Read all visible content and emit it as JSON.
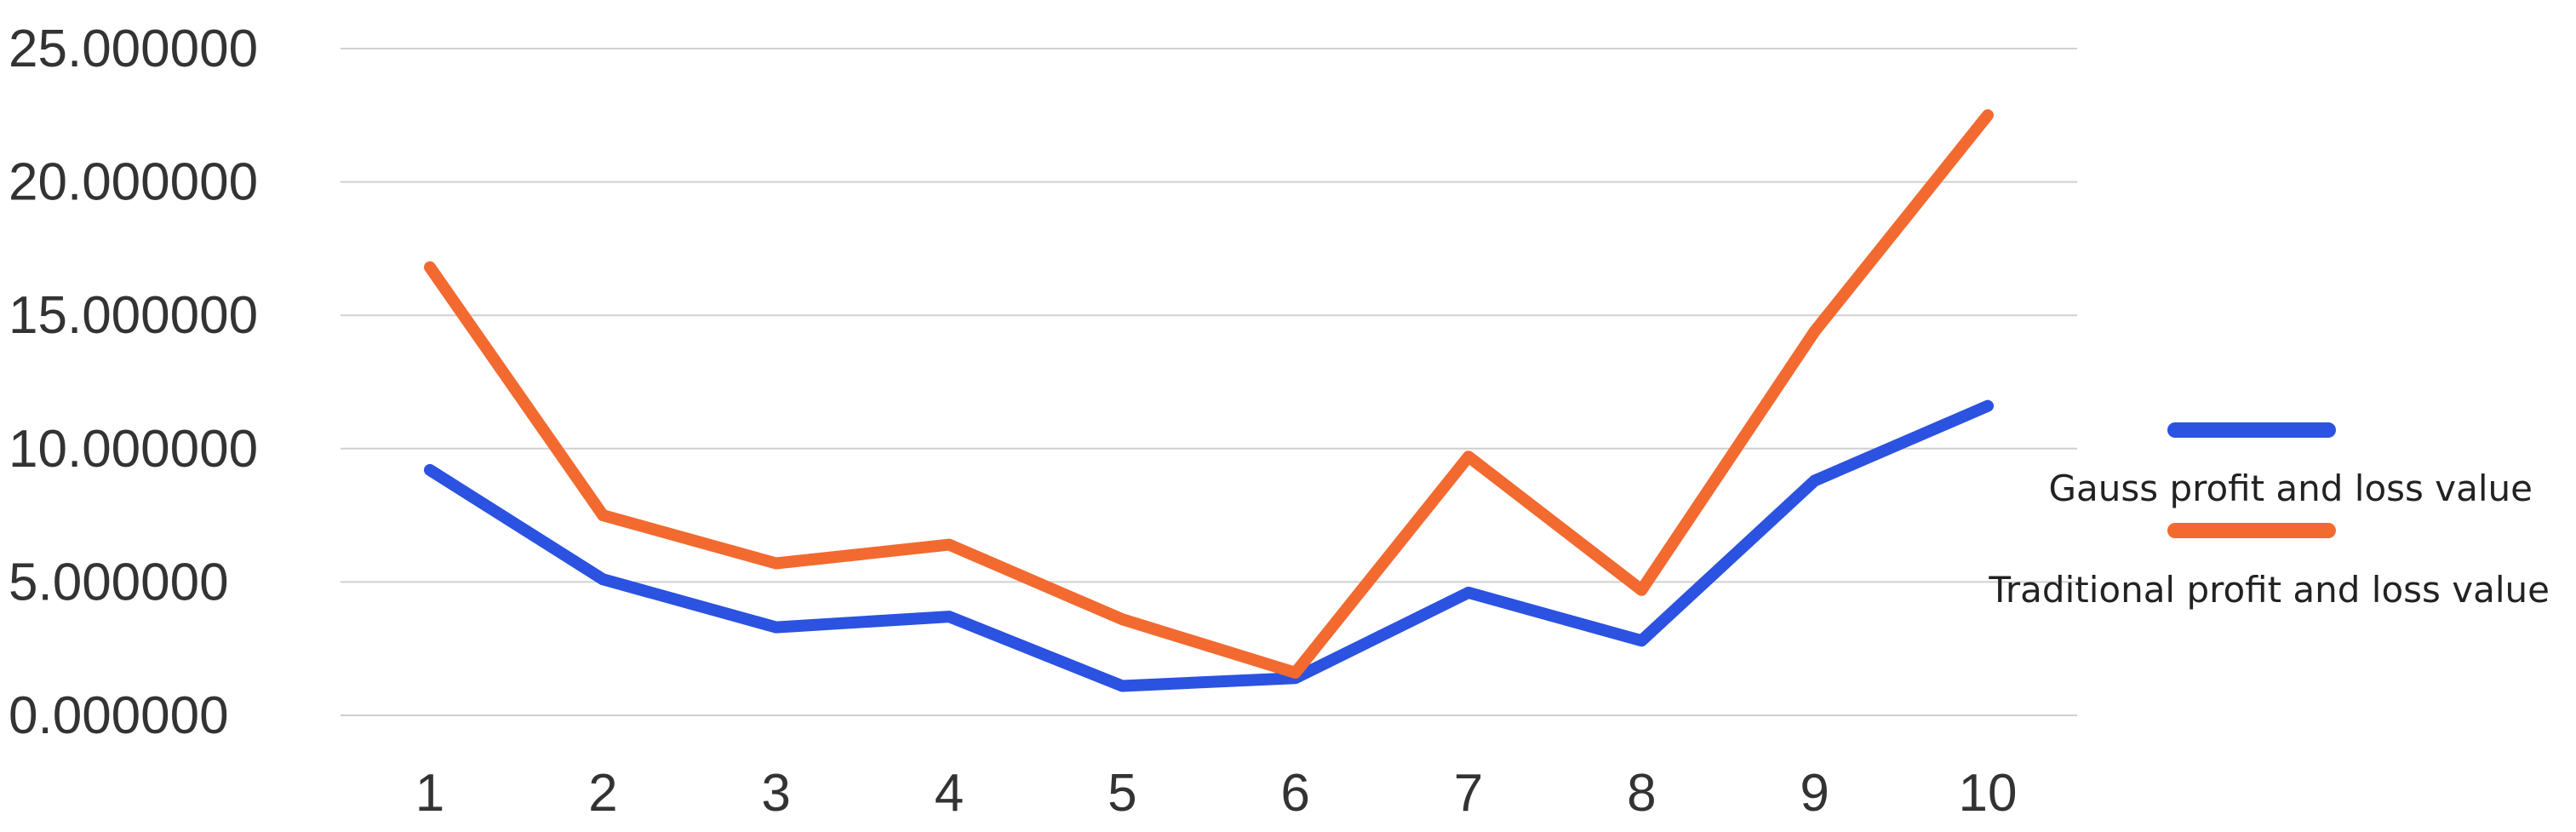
{
  "chart_data": {
    "type": "line",
    "title": "",
    "xlabel": "",
    "ylabel": "",
    "categories": [
      "1",
      "2",
      "3",
      "4",
      "5",
      "6",
      "7",
      "8",
      "9",
      "10"
    ],
    "ylim": [
      0,
      25
    ],
    "y_ticks": [
      "0.000000",
      "5.000000",
      "10.000000",
      "15.000000",
      "20.000000",
      "25.000000"
    ],
    "y_tick_values": [
      0,
      5,
      10,
      15,
      20,
      25
    ],
    "grid": true,
    "legend_position": "right",
    "series": [
      {
        "name": "Gauss profit and loss value",
        "color": "#2b52e0",
        "values": [
          9.2,
          5.1,
          3.3,
          3.7,
          1.1,
          1.4,
          4.6,
          2.8,
          8.8,
          11.6
        ]
      },
      {
        "name": "Traditional profit and loss value",
        "color": "#f26a30",
        "values": [
          16.8,
          7.5,
          5.7,
          6.4,
          3.6,
          1.6,
          9.7,
          4.7,
          14.4,
          22.5
        ]
      }
    ]
  }
}
